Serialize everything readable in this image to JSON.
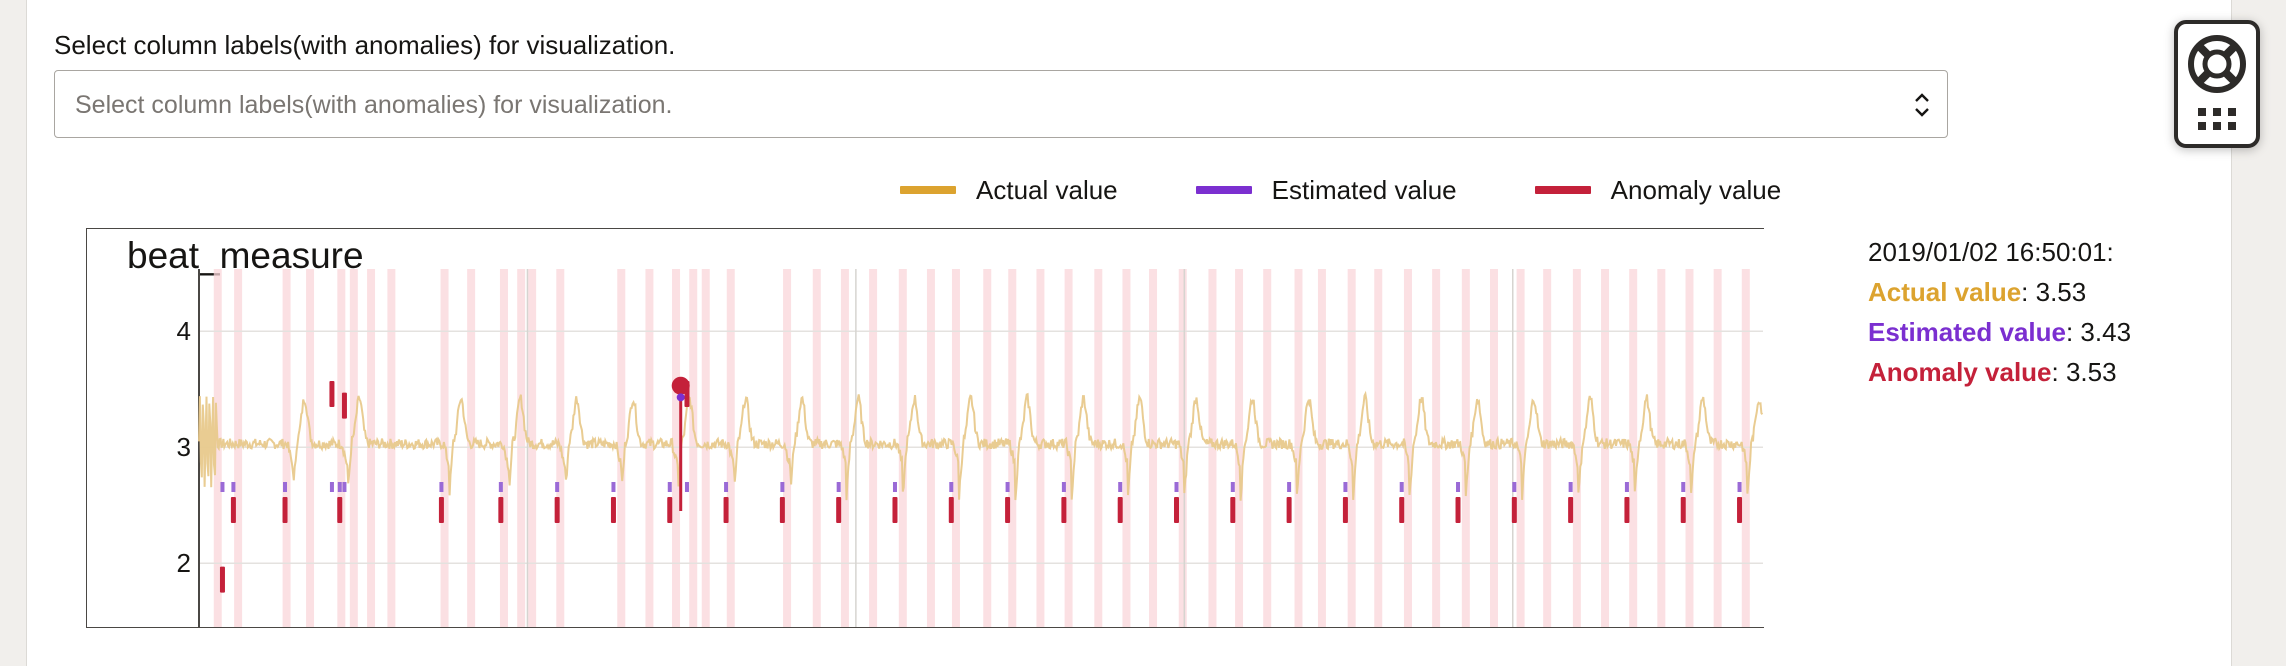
{
  "selector": {
    "label": "Select column labels(with anomalies) for visualization.",
    "placeholder": "Select column labels(with anomalies) for visualization."
  },
  "legend": [
    {
      "name": "Actual value",
      "color": "#dca32f"
    },
    {
      "name": "Estimated value",
      "color": "#7b2fd0"
    },
    {
      "name": "Anomaly value",
      "color": "#c4213a"
    }
  ],
  "tooltip": {
    "timestamp": "2019/01/02 16:50:01:",
    "actual_label": "Actual value",
    "actual_value": ": 3.53",
    "estimated_label": "Estimated value",
    "estimated_value": ": 3.43",
    "anomaly_label": "Anomaly value",
    "anomaly_value": ": 3.53"
  },
  "side_widget": {
    "icons": [
      "lifebuoy-icon",
      "grid-icon"
    ]
  },
  "chart_data": {
    "type": "line",
    "title": "beat_measure",
    "yticks": [
      2,
      3,
      4
    ],
    "ylim": [
      1.45,
      4.45
    ],
    "xlim": [
      0,
      100
    ],
    "grid": true,
    "legend_position": "top",
    "beats_x": [
      6,
      9.5,
      16,
      19.8,
      23.4,
      27,
      30.6,
      34.2,
      37.8,
      41.4,
      45,
      48.6,
      52.2,
      55.8,
      59.4,
      63,
      66.6,
      70.2,
      73.8,
      77.4,
      81,
      84.6,
      88.2,
      91.8,
      95.4,
      99
    ],
    "baseline": 3.03,
    "peak": 3.42,
    "anomaly_bands_x": [
      1.2,
      2.5,
      5.6,
      7.1,
      9.1,
      9.9,
      11.0,
      12.3,
      15.7,
      17.4,
      19.5,
      20.6,
      21.3,
      23.1,
      27.0,
      28.8,
      30.5,
      31.6,
      32.4,
      34.0,
      37.6,
      39.5,
      41.3,
      43.1,
      45.0,
      46.8,
      48.4,
      50.4,
      52.0,
      53.8,
      55.6,
      57.5,
      59.3,
      61.0,
      62.9,
      64.8,
      66.5,
      68.3,
      70.3,
      71.8,
      73.7,
      75.4,
      77.3,
      79.1,
      81.0,
      82.8,
      84.5,
      86.2,
      88.1,
      89.9,
      91.7,
      93.5,
      95.3,
      97.1,
      98.9
    ],
    "anomaly_points": [
      {
        "x": 1.5,
        "y": 1.85
      },
      {
        "x": 2.2,
        "y": 2.45
      },
      {
        "x": 5.5,
        "y": 2.45
      },
      {
        "x": 8.5,
        "y": 3.45
      },
      {
        "x": 9.0,
        "y": 2.45
      },
      {
        "x": 9.3,
        "y": 3.35
      },
      {
        "x": 15.5,
        "y": 2.45
      },
      {
        "x": 19.3,
        "y": 2.45
      },
      {
        "x": 22.9,
        "y": 2.45
      },
      {
        "x": 26.5,
        "y": 2.45
      },
      {
        "x": 30.1,
        "y": 2.45
      },
      {
        "x": 31.2,
        "y": 3.45
      },
      {
        "x": 33.7,
        "y": 2.45
      },
      {
        "x": 37.3,
        "y": 2.45
      },
      {
        "x": 40.9,
        "y": 2.45
      },
      {
        "x": 44.5,
        "y": 2.45
      },
      {
        "x": 48.1,
        "y": 2.45
      },
      {
        "x": 51.7,
        "y": 2.45
      },
      {
        "x": 55.3,
        "y": 2.45
      },
      {
        "x": 58.9,
        "y": 2.45
      },
      {
        "x": 62.5,
        "y": 2.45
      },
      {
        "x": 66.1,
        "y": 2.45
      },
      {
        "x": 69.7,
        "y": 2.45
      },
      {
        "x": 73.3,
        "y": 2.45
      },
      {
        "x": 76.9,
        "y": 2.45
      },
      {
        "x": 80.5,
        "y": 2.45
      },
      {
        "x": 84.1,
        "y": 2.45
      },
      {
        "x": 87.7,
        "y": 2.45
      },
      {
        "x": 91.3,
        "y": 2.45
      },
      {
        "x": 94.9,
        "y": 2.45
      },
      {
        "x": 98.5,
        "y": 2.45
      }
    ],
    "highlight_point": {
      "x": 30.8,
      "y": 3.53
    }
  }
}
